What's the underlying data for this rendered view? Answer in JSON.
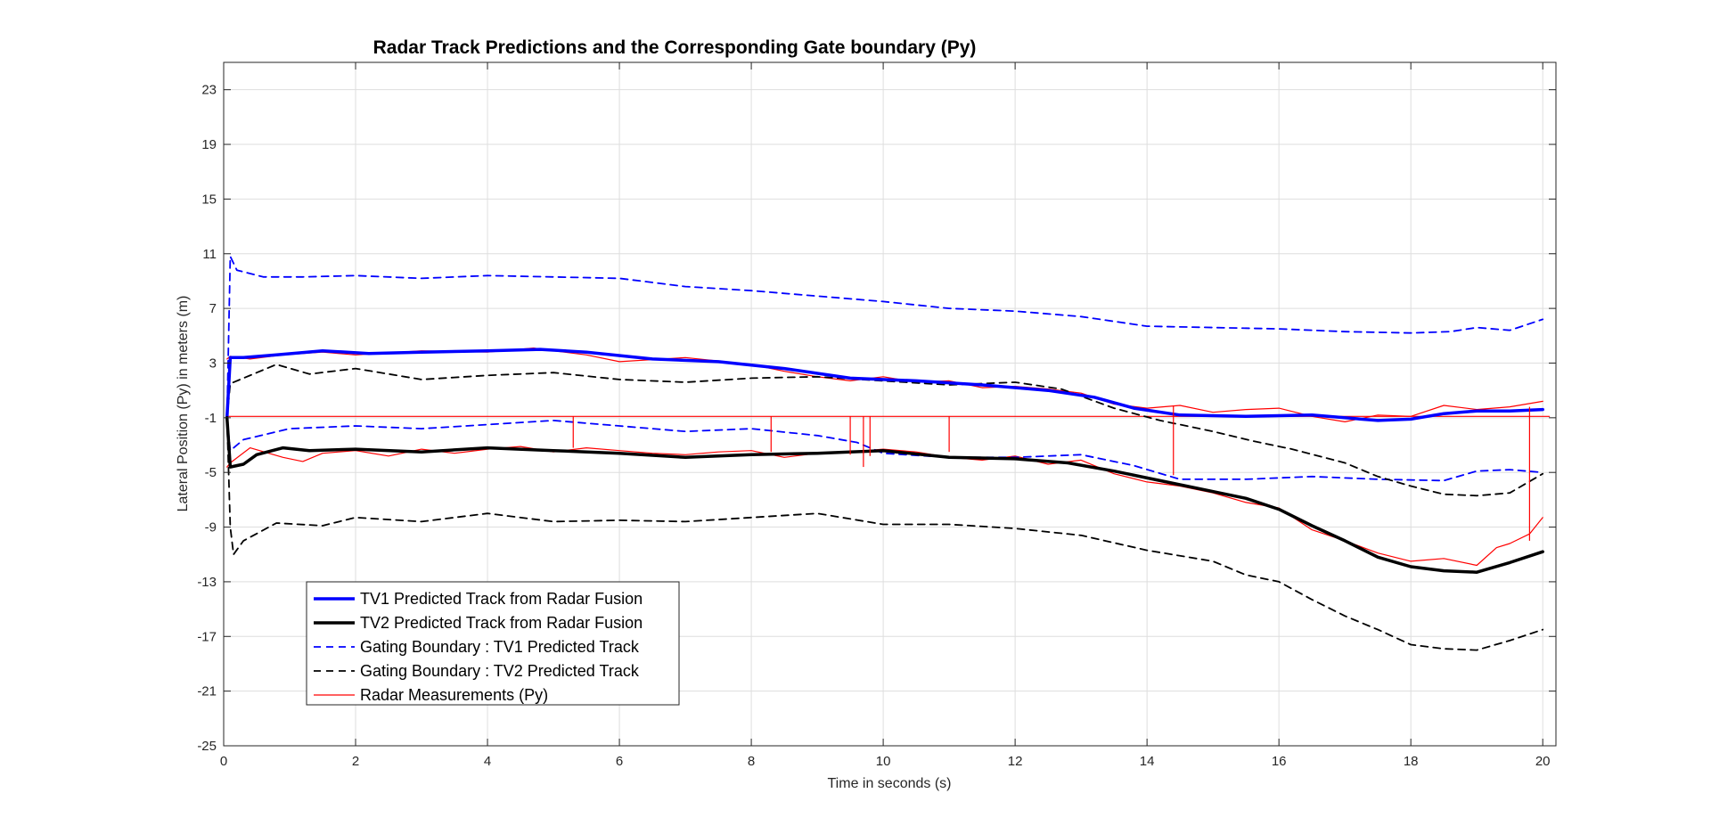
{
  "chart_data": {
    "type": "line",
    "title": "Radar Track Predictions and the Corresponding Gate boundary (Py)",
    "xlabel": "Time in seconds (s)",
    "ylabel": "Lateral Position (Py) in meters (m)",
    "xlim": [
      0,
      20.2
    ],
    "ylim": [
      -25,
      25
    ],
    "xticks": [
      0,
      2,
      4,
      6,
      8,
      10,
      12,
      14,
      16,
      18,
      20
    ],
    "yticks": [
      -25,
      -21,
      -17,
      -13,
      -9,
      -5,
      -1,
      3,
      7,
      11,
      15,
      19,
      23
    ],
    "grid": true,
    "legend_position": "bottom-left",
    "series": [
      {
        "name": "TV1 Predicted Track from Radar Fusion",
        "color": "#0000ff",
        "style": "solid",
        "width": 3.5,
        "x": [
          0.05,
          0.1,
          0.3,
          0.8,
          1.5,
          2.2,
          3.0,
          4.0,
          4.8,
          5.5,
          6.5,
          7.5,
          8.5,
          9.5,
          10.5,
          11.5,
          12.5,
          13.2,
          13.8,
          14.5,
          15.5,
          16.5,
          17.5,
          18.0,
          18.5,
          19.0,
          19.5,
          20.0
        ],
        "y": [
          -1.0,
          3.4,
          3.4,
          3.6,
          3.9,
          3.7,
          3.8,
          3.9,
          4.0,
          3.8,
          3.3,
          3.1,
          2.6,
          1.9,
          1.7,
          1.4,
          1.0,
          0.5,
          -0.3,
          -0.8,
          -0.9,
          -0.8,
          -1.2,
          -1.1,
          -0.7,
          -0.5,
          -0.5,
          -0.4
        ]
      },
      {
        "name": "TV2 Predicted Track from Radar Fusion",
        "color": "#000000",
        "style": "solid",
        "width": 3.5,
        "x": [
          0.05,
          0.1,
          0.3,
          0.5,
          0.9,
          1.3,
          2.0,
          3.0,
          4.0,
          5.0,
          6.0,
          7.0,
          8.0,
          9.0,
          10.0,
          11.0,
          12.0,
          12.8,
          13.5,
          14.5,
          15.5,
          16.0,
          16.5,
          17.0,
          17.5,
          18.0,
          18.5,
          19.0,
          19.5,
          20.0
        ],
        "y": [
          -1.0,
          -4.6,
          -4.4,
          -3.7,
          -3.2,
          -3.4,
          -3.3,
          -3.5,
          -3.2,
          -3.4,
          -3.6,
          -3.9,
          -3.7,
          -3.6,
          -3.4,
          -3.9,
          -4.0,
          -4.3,
          -4.9,
          -5.9,
          -6.9,
          -7.7,
          -8.9,
          -10.0,
          -11.2,
          -11.9,
          -12.2,
          -12.3,
          -11.6,
          -10.8
        ]
      },
      {
        "name": "Gating Boundary : TV1 Predicted Track",
        "color": "#0000ff",
        "style": "dashed",
        "width": 1.8,
        "x": [
          0.05,
          0.1,
          0.2,
          0.6,
          1.2,
          2.0,
          3.0,
          4.0,
          5.0,
          6.0,
          7.0,
          8.0,
          9.0,
          10.0,
          11.0,
          12.0,
          13.0,
          14.0,
          15.0,
          16.0,
          17.0,
          18.0,
          18.6,
          19.0,
          19.5,
          20.0
        ],
        "y": [
          -1.0,
          10.8,
          9.8,
          9.3,
          9.3,
          9.4,
          9.2,
          9.4,
          9.3,
          9.2,
          8.6,
          8.3,
          7.9,
          7.5,
          7.0,
          6.8,
          6.4,
          5.7,
          5.6,
          5.5,
          5.3,
          5.2,
          5.3,
          5.6,
          5.4,
          6.2
        ]
      },
      {
        "name": "Gating Boundary : TV1 Predicted Track (lower)",
        "color": "#0000ff",
        "style": "dashed",
        "width": 1.8,
        "x": [
          0.05,
          0.1,
          0.3,
          1.0,
          2.0,
          3.0,
          4.0,
          5.0,
          6.0,
          7.0,
          8.0,
          9.0,
          9.6,
          10.0,
          11.0,
          12.0,
          13.0,
          13.8,
          14.5,
          15.5,
          16.5,
          17.5,
          18.5,
          19.0,
          19.5,
          20.0
        ],
        "y": [
          -1.0,
          -3.4,
          -2.6,
          -1.8,
          -1.6,
          -1.8,
          -1.5,
          -1.2,
          -1.6,
          -2.0,
          -1.8,
          -2.3,
          -2.8,
          -3.6,
          -3.9,
          -3.9,
          -3.7,
          -4.5,
          -5.5,
          -5.5,
          -5.3,
          -5.5,
          -5.6,
          -4.9,
          -4.8,
          -5.0
        ]
      },
      {
        "name": "Gating Boundary : TV2 Predicted Track",
        "color": "#000000",
        "style": "dashed",
        "width": 1.8,
        "x": [
          0.05,
          0.1,
          0.3,
          0.8,
          1.3,
          2.0,
          3.0,
          4.0,
          5.0,
          6.0,
          7.0,
          8.0,
          9.0,
          10.0,
          11.0,
          12.0,
          12.7,
          13.5,
          14.2,
          15.0,
          15.6,
          16.2,
          17.0,
          17.5,
          18.0,
          18.5,
          19.0,
          19.5,
          20.0
        ],
        "y": [
          -1.0,
          1.5,
          1.9,
          2.9,
          2.2,
          2.6,
          1.8,
          2.1,
          2.3,
          1.8,
          1.6,
          1.9,
          2.0,
          1.7,
          1.4,
          1.6,
          1.1,
          -0.3,
          -1.2,
          -2.0,
          -2.7,
          -3.3,
          -4.3,
          -5.3,
          -6.0,
          -6.6,
          -6.7,
          -6.5,
          -5.1
        ]
      },
      {
        "name": "Gating Boundary : TV2 Predicted Track (lower)",
        "color": "#000000",
        "style": "dashed",
        "width": 1.8,
        "x": [
          0.05,
          0.1,
          0.15,
          0.3,
          0.8,
          1.5,
          2.0,
          3.0,
          4.0,
          5.0,
          6.0,
          7.0,
          8.0,
          9.0,
          10.0,
          11.0,
          12.0,
          13.0,
          14.0,
          15.0,
          15.5,
          16.0,
          16.5,
          17.0,
          17.5,
          18.0,
          18.5,
          19.0,
          19.5,
          20.0
        ],
        "y": [
          -1.0,
          -9.0,
          -11.0,
          -10.0,
          -8.7,
          -8.9,
          -8.3,
          -8.6,
          -8.0,
          -8.6,
          -8.5,
          -8.6,
          -8.3,
          -8.0,
          -8.8,
          -8.8,
          -9.1,
          -9.6,
          -10.7,
          -11.5,
          -12.5,
          -13.0,
          -14.3,
          -15.5,
          -16.5,
          -17.6,
          -17.9,
          -18.0,
          -17.3,
          -16.5
        ]
      },
      {
        "name": "Radar Measurements (Py)",
        "color": "#ff0000",
        "style": "solid",
        "width": 1.2,
        "x": [
          0.05,
          0.1,
          0.4,
          0.9,
          1.5,
          2.0,
          3.0,
          4.0,
          4.7,
          5.0,
          5.5,
          6.0,
          7.0,
          8.0,
          8.5,
          9.0,
          9.5,
          10.0,
          10.5,
          11.0,
          11.5,
          12.0,
          12.5,
          13.0,
          13.5,
          14.0,
          14.5,
          15.0,
          15.5,
          16.0,
          16.5,
          17.0,
          17.5,
          18.0,
          18.5,
          19.0,
          19.5,
          20.0
        ],
        "y": [
          3.3,
          3.5,
          3.3,
          3.6,
          3.8,
          3.6,
          3.9,
          3.8,
          4.1,
          3.9,
          3.6,
          3.1,
          3.4,
          2.9,
          2.4,
          2.0,
          1.7,
          2.0,
          1.6,
          1.7,
          1.2,
          1.3,
          1.1,
          0.8,
          0.0,
          -0.3,
          -0.1,
          -0.6,
          -0.4,
          -0.3,
          -0.9,
          -1.3,
          -0.8,
          -0.9,
          -0.1,
          -0.4,
          -0.2,
          0.2
        ]
      },
      {
        "name": "Radar Measurements (Py) 2",
        "color": "#ff0000",
        "style": "solid",
        "width": 1.2,
        "x": [
          0.05,
          0.1,
          0.4,
          0.9,
          1.2,
          1.5,
          2.0,
          2.5,
          3.0,
          3.5,
          4.0,
          4.5,
          5.0,
          5.5,
          6.0,
          6.5,
          7.0,
          7.5,
          8.0,
          8.5,
          9.0,
          9.5,
          10.0,
          10.5,
          11.0,
          11.5,
          12.0,
          12.5,
          13.0,
          13.5,
          14.0,
          14.5,
          15.0,
          15.5,
          16.0,
          16.5,
          17.0,
          17.5,
          18.0,
          18.5,
          19.0,
          19.3,
          19.5,
          19.8,
          20.0
        ],
        "y": [
          -4.6,
          -4.3,
          -3.2,
          -3.9,
          -4.2,
          -3.6,
          -3.4,
          -3.8,
          -3.3,
          -3.6,
          -3.3,
          -3.1,
          -3.5,
          -3.2,
          -3.4,
          -3.6,
          -3.7,
          -3.5,
          -3.4,
          -3.9,
          -3.6,
          -3.5,
          -3.3,
          -3.5,
          -3.9,
          -4.1,
          -3.8,
          -4.4,
          -4.1,
          -5.1,
          -5.7,
          -6.0,
          -6.5,
          -7.2,
          -7.6,
          -9.2,
          -10.0,
          -10.9,
          -11.5,
          -11.3,
          -11.8,
          -10.5,
          -10.2,
          -9.5,
          -8.3
        ]
      },
      {
        "name": "Radar Measurements (Py) 3",
        "color": "#ff0000",
        "style": "solid",
        "width": 1.2,
        "x": [
          0.05,
          20.1
        ],
        "y": [
          -0.9,
          -0.9
        ]
      }
    ],
    "spikes": {
      "color": "#ff0000",
      "x": [
        5.3,
        8.3,
        9.5,
        9.7,
        9.8,
        11.0,
        14.4,
        19.8
      ],
      "y_from": [
        -0.9,
        -0.9,
        -0.9,
        -0.9,
        -0.9,
        -0.9,
        -0.1,
        -0.2
      ],
      "y_to": [
        -3.2,
        -3.5,
        -3.7,
        -4.6,
        -3.8,
        -3.5,
        -5.2,
        -10.0
      ]
    }
  },
  "legend": {
    "items": [
      {
        "label": "TV1 Predicted Track from Radar Fusion",
        "color": "#0000ff",
        "style": "solid",
        "width": 3.5
      },
      {
        "label": "TV2 Predicted Track from Radar Fusion",
        "color": "#000000",
        "style": "solid",
        "width": 3.5
      },
      {
        "label": "Gating Boundary : TV1 Predicted Track",
        "color": "#0000ff",
        "style": "dashed",
        "width": 1.8
      },
      {
        "label": "Gating Boundary : TV2 Predicted Track",
        "color": "#000000",
        "style": "dashed",
        "width": 1.8
      },
      {
        "label": "Radar Measurements (Py)",
        "color": "#ff0000",
        "style": "solid",
        "width": 1.2
      }
    ]
  }
}
